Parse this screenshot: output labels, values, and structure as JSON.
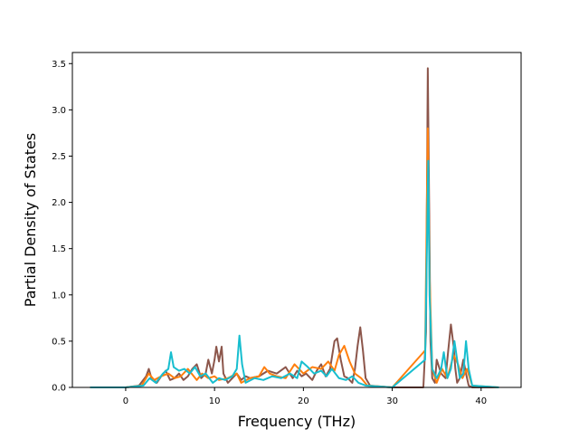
{
  "chart_data": {
    "type": "line",
    "title": "",
    "xlabel": "Frequency (THz)",
    "ylabel": "Partial Density of States",
    "xlim": [
      -6,
      44.5
    ],
    "ylim": [
      0,
      3.62
    ],
    "xticks": [
      0,
      10,
      20,
      30,
      40
    ],
    "yticks": [
      0.0,
      0.5,
      1.0,
      1.5,
      2.0,
      2.5,
      3.0,
      3.5
    ],
    "xtick_labels": [
      "0",
      "10",
      "20",
      "30",
      "40"
    ],
    "ytick_labels": [
      "0.0",
      "0.5",
      "1.0",
      "1.5",
      "2.0",
      "2.5",
      "3.0",
      "3.5"
    ],
    "grid": false,
    "legend": "none",
    "series": [
      {
        "color": "#8c564b",
        "x": [
          -4,
          0,
          1.5,
          2.3,
          2.6,
          2.9,
          3.5,
          4.0,
          4.5,
          5.0,
          5.5,
          6.0,
          6.5,
          7.0,
          7.5,
          8.0,
          8.5,
          9.0,
          9.3,
          9.7,
          10.0,
          10.2,
          10.5,
          10.8,
          11.0,
          11.5,
          12.0,
          12.5,
          13.0,
          13.5,
          14.0,
          15.0,
          16.0,
          17.0,
          18.0,
          18.8,
          19.3,
          19.8,
          20.3,
          21.0,
          21.5,
          22.0,
          22.5,
          23.0,
          23.5,
          23.8,
          24.2,
          24.6,
          25.0,
          25.5,
          25.8,
          26.1,
          26.4,
          26.7,
          27.0,
          27.5,
          30,
          33.5,
          33.8,
          34.0,
          34.15,
          34.3,
          34.5,
          34.8,
          35.0,
          35.5,
          36.0,
          36.3,
          36.6,
          36.9,
          37.1,
          37.3,
          37.6,
          38.0,
          38.3,
          38.6,
          39.0,
          42
        ],
        "y": [
          0,
          0,
          0.02,
          0.12,
          0.2,
          0.1,
          0.05,
          0.12,
          0.18,
          0.08,
          0.1,
          0.15,
          0.08,
          0.12,
          0.2,
          0.25,
          0.1,
          0.15,
          0.3,
          0.15,
          0.3,
          0.44,
          0.28,
          0.44,
          0.15,
          0.05,
          0.1,
          0.15,
          0.08,
          0.12,
          0.1,
          0.12,
          0.18,
          0.15,
          0.22,
          0.1,
          0.18,
          0.12,
          0.15,
          0.08,
          0.18,
          0.25,
          0.12,
          0.2,
          0.5,
          0.53,
          0.3,
          0.12,
          0.1,
          0.05,
          0.2,
          0.45,
          0.65,
          0.4,
          0.1,
          0.02,
          0,
          0,
          0.6,
          3.45,
          2.0,
          0.5,
          0.1,
          0.05,
          0.3,
          0.15,
          0.1,
          0.4,
          0.68,
          0.45,
          0.2,
          0.05,
          0.1,
          0.3,
          0.15,
          0.02,
          0,
          0
        ]
      },
      {
        "color": "#ff7f0e",
        "x": [
          -4,
          0,
          1.8,
          2.6,
          3.2,
          4.0,
          4.8,
          5.5,
          6.2,
          7.0,
          7.5,
          8.0,
          8.6,
          9.3,
          10.0,
          10.5,
          11.5,
          12.5,
          13.0,
          14.0,
          15.0,
          15.6,
          16.2,
          17.0,
          18.0,
          19.0,
          20.0,
          21.0,
          22.0,
          22.8,
          23.5,
          24.0,
          24.6,
          25.2,
          25.8,
          26.5,
          27.2,
          30,
          33.7,
          34.0,
          34.2,
          34.5,
          35.0,
          35.6,
          36.2,
          36.9,
          37.4,
          37.9,
          38.4,
          39.0,
          42
        ],
        "y": [
          0,
          0,
          0.02,
          0.15,
          0.08,
          0.12,
          0.15,
          0.1,
          0.12,
          0.2,
          0.14,
          0.08,
          0.15,
          0.1,
          0.12,
          0.08,
          0.1,
          0.15,
          0.05,
          0.1,
          0.12,
          0.22,
          0.15,
          0.12,
          0.1,
          0.25,
          0.15,
          0.22,
          0.2,
          0.28,
          0.18,
          0.35,
          0.45,
          0.28,
          0.15,
          0.1,
          0.02,
          0,
          0.4,
          2.8,
          1.2,
          0.2,
          0.05,
          0.2,
          0.1,
          0.35,
          0.25,
          0.1,
          0.2,
          0.02,
          0
        ]
      },
      {
        "color": "#17becf",
        "x": [
          -4,
          0,
          2.0,
          2.7,
          3.4,
          4.2,
          4.8,
          5.1,
          5.4,
          6.0,
          6.6,
          7.2,
          7.8,
          8.4,
          9.0,
          9.8,
          10.5,
          11.2,
          12.0,
          12.5,
          12.8,
          13.1,
          13.5,
          14.5,
          15.5,
          16.5,
          17.5,
          18.5,
          19.3,
          19.8,
          20.5,
          21.2,
          22.0,
          22.6,
          23.2,
          24.0,
          24.8,
          25.5,
          26.2,
          27.0,
          30,
          33.7,
          33.9,
          34.05,
          34.2,
          34.5,
          35.0,
          35.5,
          35.8,
          36.2,
          36.6,
          37.0,
          37.3,
          37.6,
          38.0,
          38.3,
          38.6,
          39.0,
          42
        ],
        "y": [
          0,
          0,
          0.02,
          0.1,
          0.05,
          0.15,
          0.2,
          0.38,
          0.22,
          0.18,
          0.2,
          0.15,
          0.22,
          0.12,
          0.15,
          0.05,
          0.1,
          0.08,
          0.12,
          0.2,
          0.56,
          0.25,
          0.05,
          0.1,
          0.08,
          0.12,
          0.1,
          0.15,
          0.1,
          0.28,
          0.22,
          0.15,
          0.18,
          0.12,
          0.2,
          0.1,
          0.08,
          0.12,
          0.05,
          0.02,
          0,
          0.3,
          1.5,
          2.45,
          1.0,
          0.2,
          0.1,
          0.2,
          0.38,
          0.1,
          0.2,
          0.5,
          0.3,
          0.1,
          0.15,
          0.5,
          0.2,
          0.02,
          0
        ]
      }
    ]
  }
}
